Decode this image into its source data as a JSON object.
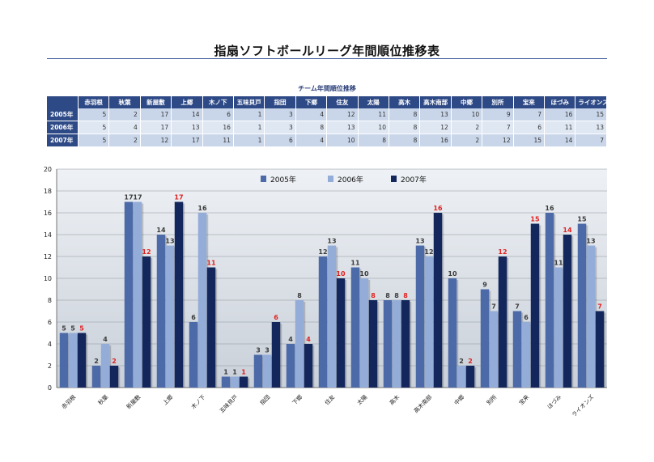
{
  "page": {
    "title": "指扇ソフトボールリーグ年間順位推移表",
    "table_title": "チーム年間順位推移"
  },
  "colors": {
    "s2005": "#4c6aa8",
    "s2006": "#93acd8",
    "s2007": "#14275c",
    "label_red": "#e02020",
    "plot_bg": "#dde3ea",
    "header_bg": "#2e4a86"
  },
  "table": {
    "columns": [
      "赤羽根",
      "秋葉",
      "新屋敷",
      "上郷",
      "木ノ下",
      "五味貝戸",
      "指団",
      "下郷",
      "住友",
      "太陽",
      "高木",
      "高木南部",
      "中郷",
      "別所",
      "宝来",
      "ほづみ",
      "ライオンズ"
    ],
    "rows": [
      {
        "label": "2005年",
        "values": [
          5,
          2,
          17,
          14,
          6,
          1,
          3,
          4,
          12,
          11,
          8,
          13,
          10,
          9,
          7,
          16,
          15
        ]
      },
      {
        "label": "2006年",
        "values": [
          5,
          4,
          17,
          13,
          16,
          1,
          3,
          8,
          13,
          10,
          8,
          12,
          2,
          7,
          6,
          11,
          13
        ]
      },
      {
        "label": "2007年",
        "values": [
          5,
          2,
          12,
          17,
          11,
          1,
          6,
          4,
          10,
          8,
          8,
          16,
          2,
          12,
          15,
          14,
          7
        ]
      }
    ]
  },
  "chart_data": {
    "type": "bar",
    "categories": [
      "赤羽根",
      "秋葉",
      "新屋敷",
      "上郷",
      "木ノ下",
      "五味貝戸",
      "指団",
      "下郷",
      "住友",
      "太陽",
      "高木",
      "高木南部",
      "中郷",
      "別所",
      "宝来",
      "ほづみ",
      "ライオンズ"
    ],
    "series": [
      {
        "name": "2005年",
        "values": [
          5,
          2,
          17,
          14,
          6,
          1,
          3,
          4,
          12,
          11,
          8,
          13,
          10,
          9,
          7,
          16,
          15
        ]
      },
      {
        "name": "2006年",
        "values": [
          5,
          4,
          17,
          13,
          16,
          1,
          3,
          8,
          13,
          10,
          8,
          12,
          2,
          7,
          6,
          11,
          13
        ]
      },
      {
        "name": "2007年",
        "values": [
          5,
          2,
          12,
          17,
          11,
          1,
          6,
          4,
          10,
          8,
          8,
          16,
          2,
          12,
          15,
          14,
          7
        ]
      }
    ],
    "ylim": [
      0,
      20
    ],
    "yticks": [
      0,
      2,
      4,
      6,
      8,
      10,
      12,
      14,
      16,
      18,
      20
    ],
    "grid": true,
    "legend": "top-center",
    "xlabel": "",
    "ylabel": "",
    "title": ""
  }
}
